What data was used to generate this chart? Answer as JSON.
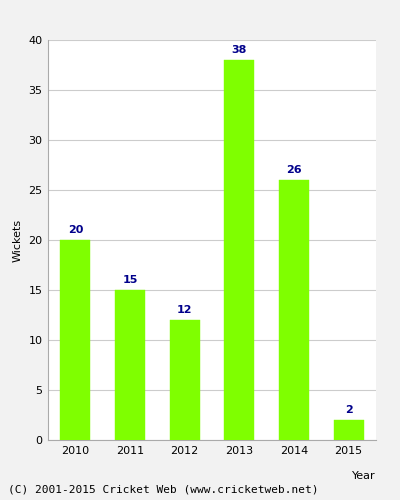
{
  "categories": [
    "2010",
    "2011",
    "2012",
    "2013",
    "2014",
    "2015"
  ],
  "values": [
    20,
    15,
    12,
    38,
    26,
    2
  ],
  "bar_color": "#7FFF00",
  "bar_edgecolor": "#7FFF00",
  "label_color": "#00008B",
  "label_fontsize": 8,
  "ylabel": "Wickets",
  "xlabel": "Year",
  "ylim": [
    0,
    40
  ],
  "yticks": [
    0,
    5,
    10,
    15,
    20,
    25,
    30,
    35,
    40
  ],
  "grid_color": "#cccccc",
  "background_color": "#f2f2f2",
  "plot_bg_color": "#ffffff",
  "footer": "(C) 2001-2015 Cricket Web (www.cricketweb.net)",
  "footer_fontsize": 8,
  "tick_fontsize": 8,
  "axis_label_fontsize": 8
}
